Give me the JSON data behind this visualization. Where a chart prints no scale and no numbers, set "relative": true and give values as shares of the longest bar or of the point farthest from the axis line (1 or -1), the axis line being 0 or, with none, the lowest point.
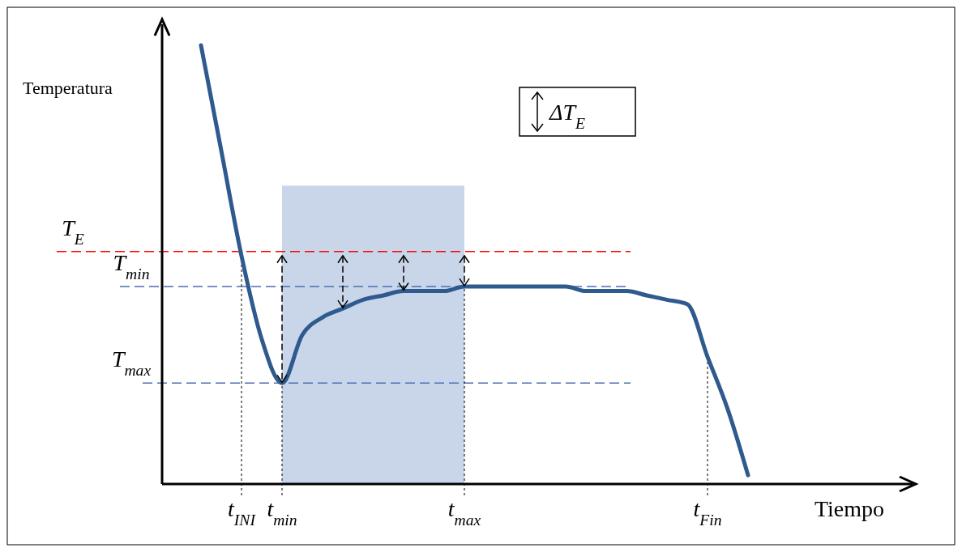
{
  "chart_data": {
    "type": "line",
    "relative": true,
    "xlabel": "Tiempo",
    "ylabel": "Temperatura",
    "categories": [
      null,
      null,
      "t$_{INI}$",
      null,
      "t$_{min}$",
      null,
      null,
      null,
      null,
      null,
      null,
      null,
      null,
      "t$_{max}$",
      null,
      null,
      null,
      null,
      null,
      null,
      null,
      null,
      null,
      null,
      null,
      "t$_{Fin}$",
      null,
      null
    ],
    "series": [
      {
        "color": "#2f5a8e",
        "values": [
          1,
          0.76,
          0.52,
          0.33,
          0.23,
          0.34,
          0.38,
          0.4,
          0.42,
          0.43,
          0.44,
          0.44,
          0.44,
          0.45,
          0.45,
          0.45,
          0.45,
          0.45,
          0.45,
          0.44,
          0.44,
          0.44,
          0.43,
          0.42,
          0.41,
          0.29,
          0.17,
          0.02
        ]
      }
    ],
    "ref_lines": [
      {
        "axis": "y",
        "value": 0.53,
        "label": "T$_{E}$",
        "color": "#ff0000",
        "line_style": "dashed"
      },
      {
        "axis": "y",
        "value": 0.45,
        "label": "T$_{min}$",
        "color": "#4a6fb0",
        "line_style": "dashed"
      },
      {
        "axis": "y",
        "value": 0.23,
        "label": "T$_{max}$",
        "color": "#4a6fb0",
        "line_style": "dashed"
      }
    ],
    "bands": [
      {
        "axis": "x",
        "from": "t$_{min}$",
        "to": "t$_{max}$",
        "color": "#c9d6ea"
      }
    ],
    "annotations": [
      "ΔT$_{E}$"
    ]
  }
}
